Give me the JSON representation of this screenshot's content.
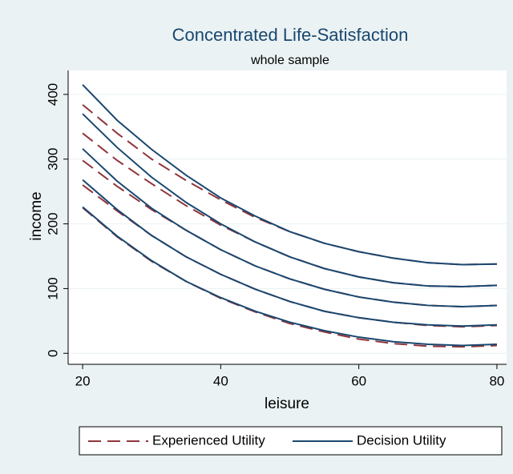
{
  "chart_data": {
    "type": "line",
    "title": "Concentrated Life-Satisfaction",
    "subtitle": "whole sample",
    "x_label": "leisure",
    "y_label": "income",
    "x": [
      20,
      25,
      30,
      35,
      40,
      45,
      50,
      55,
      60,
      65,
      70,
      75,
      80
    ],
    "series": [
      {
        "name": "Experienced Utility",
        "color": "#90353b",
        "dashed": true,
        "curves": [
          [
            384,
            340,
            300,
            267,
            237,
            210,
            188,
            170,
            157,
            147,
            140,
            137,
            138
          ],
          [
            340,
            298,
            262,
            228,
            198,
            172,
            149,
            131,
            118,
            109,
            104,
            103,
            105
          ],
          [
            298,
            258,
            222,
            190,
            160,
            135,
            115,
            99,
            87,
            79,
            74,
            72,
            74
          ],
          [
            260,
            220,
            182,
            149,
            122,
            99,
            80,
            65,
            55,
            48,
            43,
            41,
            43
          ],
          [
            225,
            180,
            142,
            111,
            85,
            64,
            46,
            33,
            22,
            15,
            11,
            10,
            12
          ]
        ]
      },
      {
        "name": "Decision Utility",
        "color": "#1a476f",
        "dashed": false,
        "curves": [
          [
            415,
            360,
            315,
            275,
            240,
            212,
            188,
            170,
            157,
            147,
            140,
            137,
            138
          ],
          [
            370,
            318,
            272,
            233,
            200,
            172,
            149,
            131,
            118,
            109,
            104,
            103,
            105
          ],
          [
            316,
            266,
            224,
            190,
            160,
            135,
            115,
            99,
            87,
            79,
            74,
            72,
            74
          ],
          [
            268,
            222,
            182,
            149,
            122,
            99,
            80,
            65,
            55,
            48,
            44,
            42,
            44
          ],
          [
            226,
            181,
            143,
            111,
            86,
            65,
            48,
            35,
            25,
            18,
            14,
            12,
            14
          ]
        ]
      }
    ],
    "xlim": [
      17.9,
      81.4
    ],
    "xticks": [
      20,
      40,
      60,
      80
    ],
    "ylim": [
      -17,
      437
    ],
    "yticks": [
      0,
      100,
      200,
      300,
      400
    ],
    "grid": true
  }
}
